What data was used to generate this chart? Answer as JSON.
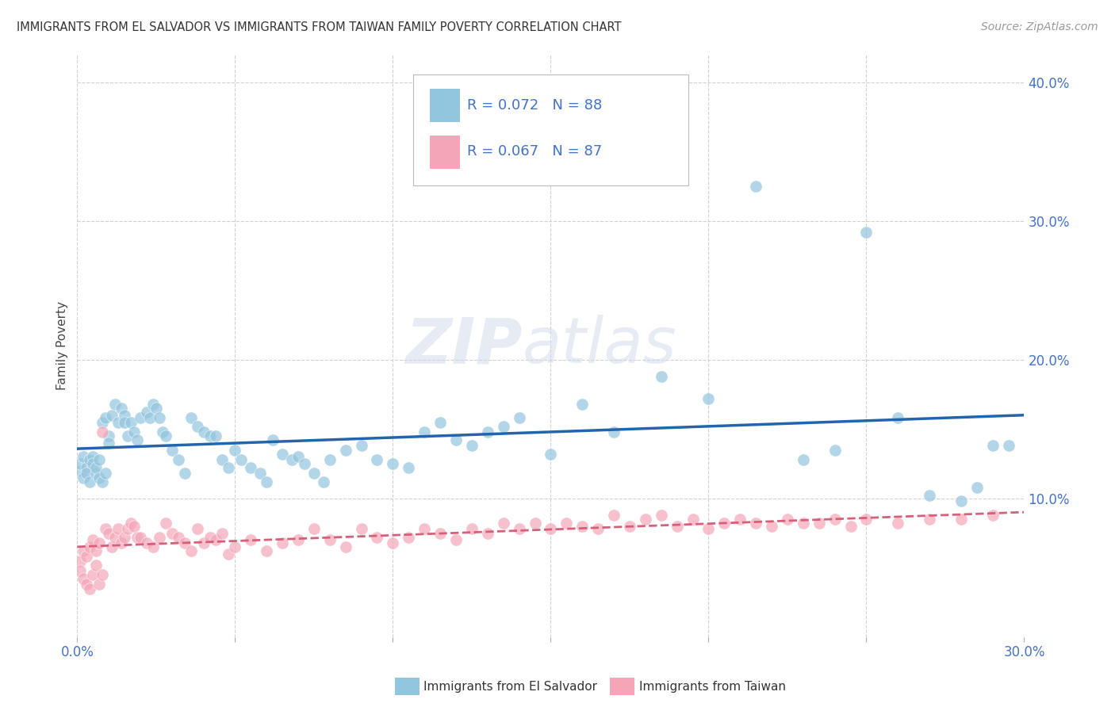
{
  "title": "IMMIGRANTS FROM EL SALVADOR VS IMMIGRANTS FROM TAIWAN FAMILY POVERTY CORRELATION CHART",
  "source": "Source: ZipAtlas.com",
  "ylabel": "Family Poverty",
  "legend_label1": "Immigrants from El Salvador",
  "legend_label2": "Immigrants from Taiwan",
  "R1": 0.072,
  "N1": 88,
  "R2": 0.067,
  "N2": 87,
  "color1": "#92c5de",
  "color2": "#f4a6b8",
  "line_color1": "#2166ac",
  "line_color2": "#d6607a",
  "bg_color": "#ffffff",
  "watermark_zip": "ZIP",
  "watermark_atlas": "atlas",
  "xlim": [
    0.0,
    0.3
  ],
  "ylim": [
    0.0,
    0.42
  ],
  "xtick_show": [
    0.0,
    0.3
  ],
  "xtick_grid": [
    0.0,
    0.05,
    0.1,
    0.15,
    0.2,
    0.25,
    0.3
  ],
  "yticks": [
    0.0,
    0.1,
    0.2,
    0.3,
    0.4
  ],
  "grid_color": "#cccccc",
  "scatter1_x": [
    0.001,
    0.001,
    0.002,
    0.002,
    0.003,
    0.003,
    0.004,
    0.004,
    0.005,
    0.005,
    0.006,
    0.006,
    0.007,
    0.007,
    0.008,
    0.008,
    0.009,
    0.009,
    0.01,
    0.01,
    0.011,
    0.012,
    0.013,
    0.014,
    0.015,
    0.015,
    0.016,
    0.017,
    0.018,
    0.019,
    0.02,
    0.022,
    0.023,
    0.024,
    0.025,
    0.026,
    0.027,
    0.028,
    0.03,
    0.032,
    0.034,
    0.036,
    0.038,
    0.04,
    0.042,
    0.044,
    0.046,
    0.048,
    0.05,
    0.052,
    0.055,
    0.058,
    0.06,
    0.062,
    0.065,
    0.068,
    0.07,
    0.072,
    0.075,
    0.078,
    0.08,
    0.085,
    0.09,
    0.095,
    0.1,
    0.105,
    0.11,
    0.115,
    0.12,
    0.125,
    0.13,
    0.135,
    0.14,
    0.15,
    0.16,
    0.17,
    0.185,
    0.2,
    0.215,
    0.23,
    0.24,
    0.25,
    0.26,
    0.27,
    0.28,
    0.285,
    0.29,
    0.295
  ],
  "scatter1_y": [
    0.12,
    0.125,
    0.115,
    0.13,
    0.122,
    0.118,
    0.128,
    0.112,
    0.13,
    0.125,
    0.118,
    0.122,
    0.115,
    0.128,
    0.155,
    0.112,
    0.118,
    0.158,
    0.145,
    0.14,
    0.16,
    0.168,
    0.155,
    0.165,
    0.16,
    0.155,
    0.145,
    0.155,
    0.148,
    0.142,
    0.158,
    0.162,
    0.158,
    0.168,
    0.165,
    0.158,
    0.148,
    0.145,
    0.135,
    0.128,
    0.118,
    0.158,
    0.152,
    0.148,
    0.145,
    0.145,
    0.128,
    0.122,
    0.135,
    0.128,
    0.122,
    0.118,
    0.112,
    0.142,
    0.132,
    0.128,
    0.13,
    0.125,
    0.118,
    0.112,
    0.128,
    0.135,
    0.138,
    0.128,
    0.125,
    0.122,
    0.148,
    0.155,
    0.142,
    0.138,
    0.148,
    0.152,
    0.158,
    0.132,
    0.168,
    0.148,
    0.188,
    0.172,
    0.325,
    0.128,
    0.135,
    0.292,
    0.158,
    0.102,
    0.098,
    0.108,
    0.138,
    0.138
  ],
  "scatter2_x": [
    0.001,
    0.001,
    0.002,
    0.002,
    0.003,
    0.003,
    0.004,
    0.004,
    0.005,
    0.005,
    0.006,
    0.006,
    0.007,
    0.007,
    0.008,
    0.008,
    0.009,
    0.01,
    0.011,
    0.012,
    0.013,
    0.014,
    0.015,
    0.016,
    0.017,
    0.018,
    0.019,
    0.02,
    0.022,
    0.024,
    0.026,
    0.028,
    0.03,
    0.032,
    0.034,
    0.036,
    0.038,
    0.04,
    0.042,
    0.044,
    0.046,
    0.048,
    0.05,
    0.055,
    0.06,
    0.065,
    0.07,
    0.075,
    0.08,
    0.085,
    0.09,
    0.095,
    0.1,
    0.105,
    0.11,
    0.115,
    0.12,
    0.125,
    0.13,
    0.135,
    0.14,
    0.145,
    0.15,
    0.155,
    0.16,
    0.165,
    0.17,
    0.175,
    0.18,
    0.185,
    0.19,
    0.195,
    0.2,
    0.205,
    0.21,
    0.215,
    0.22,
    0.225,
    0.23,
    0.235,
    0.24,
    0.245,
    0.25,
    0.26,
    0.27,
    0.28,
    0.29
  ],
  "scatter2_y": [
    0.055,
    0.048,
    0.062,
    0.042,
    0.058,
    0.038,
    0.065,
    0.035,
    0.07,
    0.045,
    0.062,
    0.052,
    0.068,
    0.038,
    0.045,
    0.148,
    0.078,
    0.075,
    0.065,
    0.072,
    0.078,
    0.068,
    0.072,
    0.078,
    0.082,
    0.08,
    0.072,
    0.072,
    0.068,
    0.065,
    0.072,
    0.082,
    0.075,
    0.072,
    0.068,
    0.062,
    0.078,
    0.068,
    0.072,
    0.07,
    0.075,
    0.06,
    0.065,
    0.07,
    0.062,
    0.068,
    0.07,
    0.078,
    0.07,
    0.065,
    0.078,
    0.072,
    0.068,
    0.072,
    0.078,
    0.075,
    0.07,
    0.078,
    0.075,
    0.082,
    0.078,
    0.082,
    0.078,
    0.082,
    0.08,
    0.078,
    0.088,
    0.08,
    0.085,
    0.088,
    0.08,
    0.085,
    0.078,
    0.082,
    0.085,
    0.082,
    0.08,
    0.085,
    0.082,
    0.082,
    0.085,
    0.08,
    0.085,
    0.082,
    0.085,
    0.085,
    0.088
  ]
}
